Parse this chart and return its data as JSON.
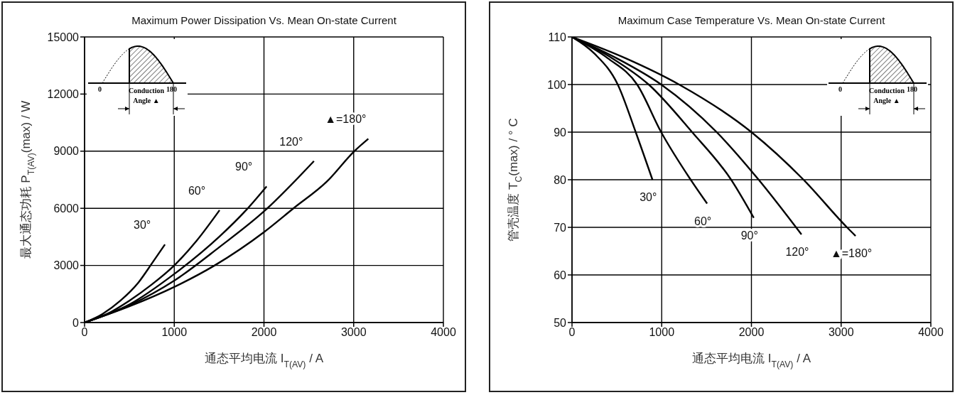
{
  "chart_data": [
    {
      "type": "line",
      "title": "Maximum Power Dissipation Vs. Mean On-state Current",
      "xlabel": "通态平均电流  I$_{T(AV)}$ / A",
      "ylabel": "最大通态功耗  P$_{T(AV)}$(max) / W",
      "xlim": [
        0,
        4000
      ],
      "xticks": [
        0,
        1000,
        2000,
        3000,
        4000
      ],
      "ylim": [
        0,
        15000
      ],
      "yticks": [
        0,
        3000,
        6000,
        9000,
        12000,
        15000
      ],
      "grid": true,
      "marker": "none",
      "line_style": "solid",
      "annotations": [
        "0",
        "180",
        "Conduction Angle ▲"
      ],
      "series": [
        {
          "name": "30°",
          "color": "#000000",
          "x": [
            0,
            200,
            400,
            600,
            750,
            896
          ],
          "values": [
            0,
            450,
            1150,
            2100,
            3100,
            4100
          ]
        },
        {
          "name": "60°",
          "color": "#000000",
          "x": [
            0,
            250,
            500,
            750,
            1000,
            1250,
            1505
          ],
          "values": [
            0,
            450,
            1150,
            2000,
            3000,
            4300,
            5900
          ]
        },
        {
          "name": "90°",
          "color": "#000000",
          "x": [
            0,
            500,
            1000,
            1500,
            1800,
            2029
          ],
          "values": [
            0,
            950,
            2550,
            4500,
            5900,
            7150
          ]
        },
        {
          "name": "120°",
          "color": "#000000",
          "x": [
            0,
            500,
            1000,
            1500,
            2003,
            2557
          ],
          "values": [
            0,
            900,
            2200,
            3950,
            5850,
            8480
          ]
        },
        {
          "name": "▲=180°",
          "color": "#000000",
          "x": [
            0,
            500,
            1000,
            1450,
            2000,
            2329,
            2700,
            3007,
            3163
          ],
          "values": [
            0,
            850,
            1870,
            3000,
            4750,
            6000,
            7400,
            9000,
            9650
          ]
        }
      ]
    },
    {
      "type": "line",
      "title": "Maximum Case Temperature Vs. Mean On-state Current",
      "xlabel": "通态平均电流  I$_{T(AV)}$ / A",
      "ylabel": "管壳温度  T$_{C}$(max) / ° C",
      "xlim": [
        0,
        4000
      ],
      "xticks": [
        0,
        1000,
        2000,
        3000,
        4000
      ],
      "ylim": [
        50,
        110
      ],
      "yticks": [
        50,
        60,
        70,
        80,
        90,
        100,
        110
      ],
      "grid": true,
      "marker": "none",
      "line_style": "solid",
      "annotations": [
        "0",
        "180",
        "Conduction Angle ▲"
      ],
      "series": [
        {
          "name": "30°",
          "color": "#000000",
          "x": [
            0,
            250,
            510,
            710,
            897
          ],
          "values": [
            110,
            106.5,
            100,
            90,
            80
          ]
        },
        {
          "name": "60°",
          "color": "#000000",
          "x": [
            0,
            400,
            726,
            994,
            1323,
            1506
          ],
          "values": [
            110,
            105.5,
            100,
            90,
            80,
            75
          ]
        },
        {
          "name": "90°",
          "color": "#000000",
          "x": [
            0,
            450,
            855,
            1339,
            1774,
            2026
          ],
          "values": [
            110,
            105.5,
            100,
            90,
            80,
            72
          ]
        },
        {
          "name": "120°",
          "color": "#000000",
          "x": [
            0,
            500,
            994,
            1613,
            2081,
            2558
          ],
          "values": [
            110,
            105.5,
            100,
            90,
            80,
            68.5
          ]
        },
        {
          "name": "▲=180°",
          "color": "#000000",
          "x": [
            0,
            600,
            1194,
            2000,
            2581,
            3065,
            3161
          ],
          "values": [
            110,
            105.5,
            100,
            90,
            80,
            70,
            68.2
          ]
        }
      ]
    }
  ]
}
